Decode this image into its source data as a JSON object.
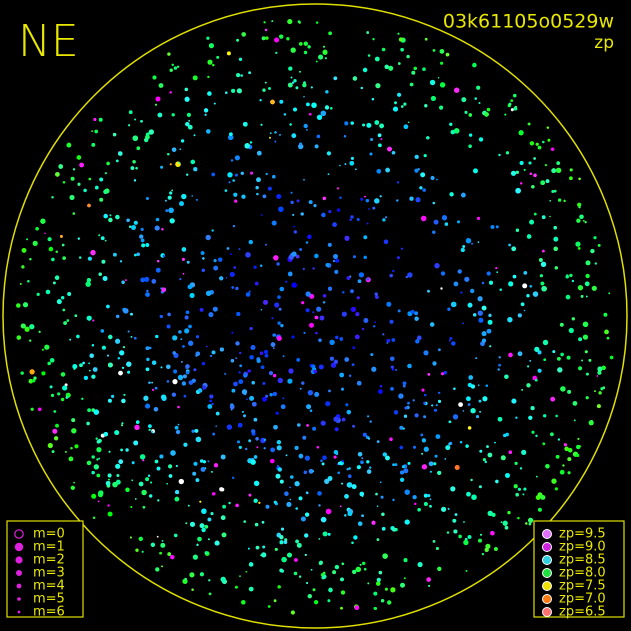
{
  "header": {
    "direction": "NE",
    "image_id": "03k61105o0529w",
    "mode": "zp"
  },
  "legends": {
    "magnitude": [
      "m=0",
      "m=1",
      "m=2",
      "m=3",
      "m=4",
      "m=5",
      "m=6"
    ],
    "zero_point": [
      {
        "label": "zp=9.5",
        "color": "#e070ff"
      },
      {
        "label": "zp=9.0",
        "color": "#d020e0"
      },
      {
        "label": "zp=8.5",
        "color": "#30d0e0"
      },
      {
        "label": "zp=8.0",
        "color": "#20e040"
      },
      {
        "label": "zp=7.5",
        "color": "#f0e000"
      },
      {
        "label": "zp=7.0",
        "color": "#ff7a10"
      },
      {
        "label": "zp=6.5",
        "color": "#ff7070"
      }
    ]
  }
}
